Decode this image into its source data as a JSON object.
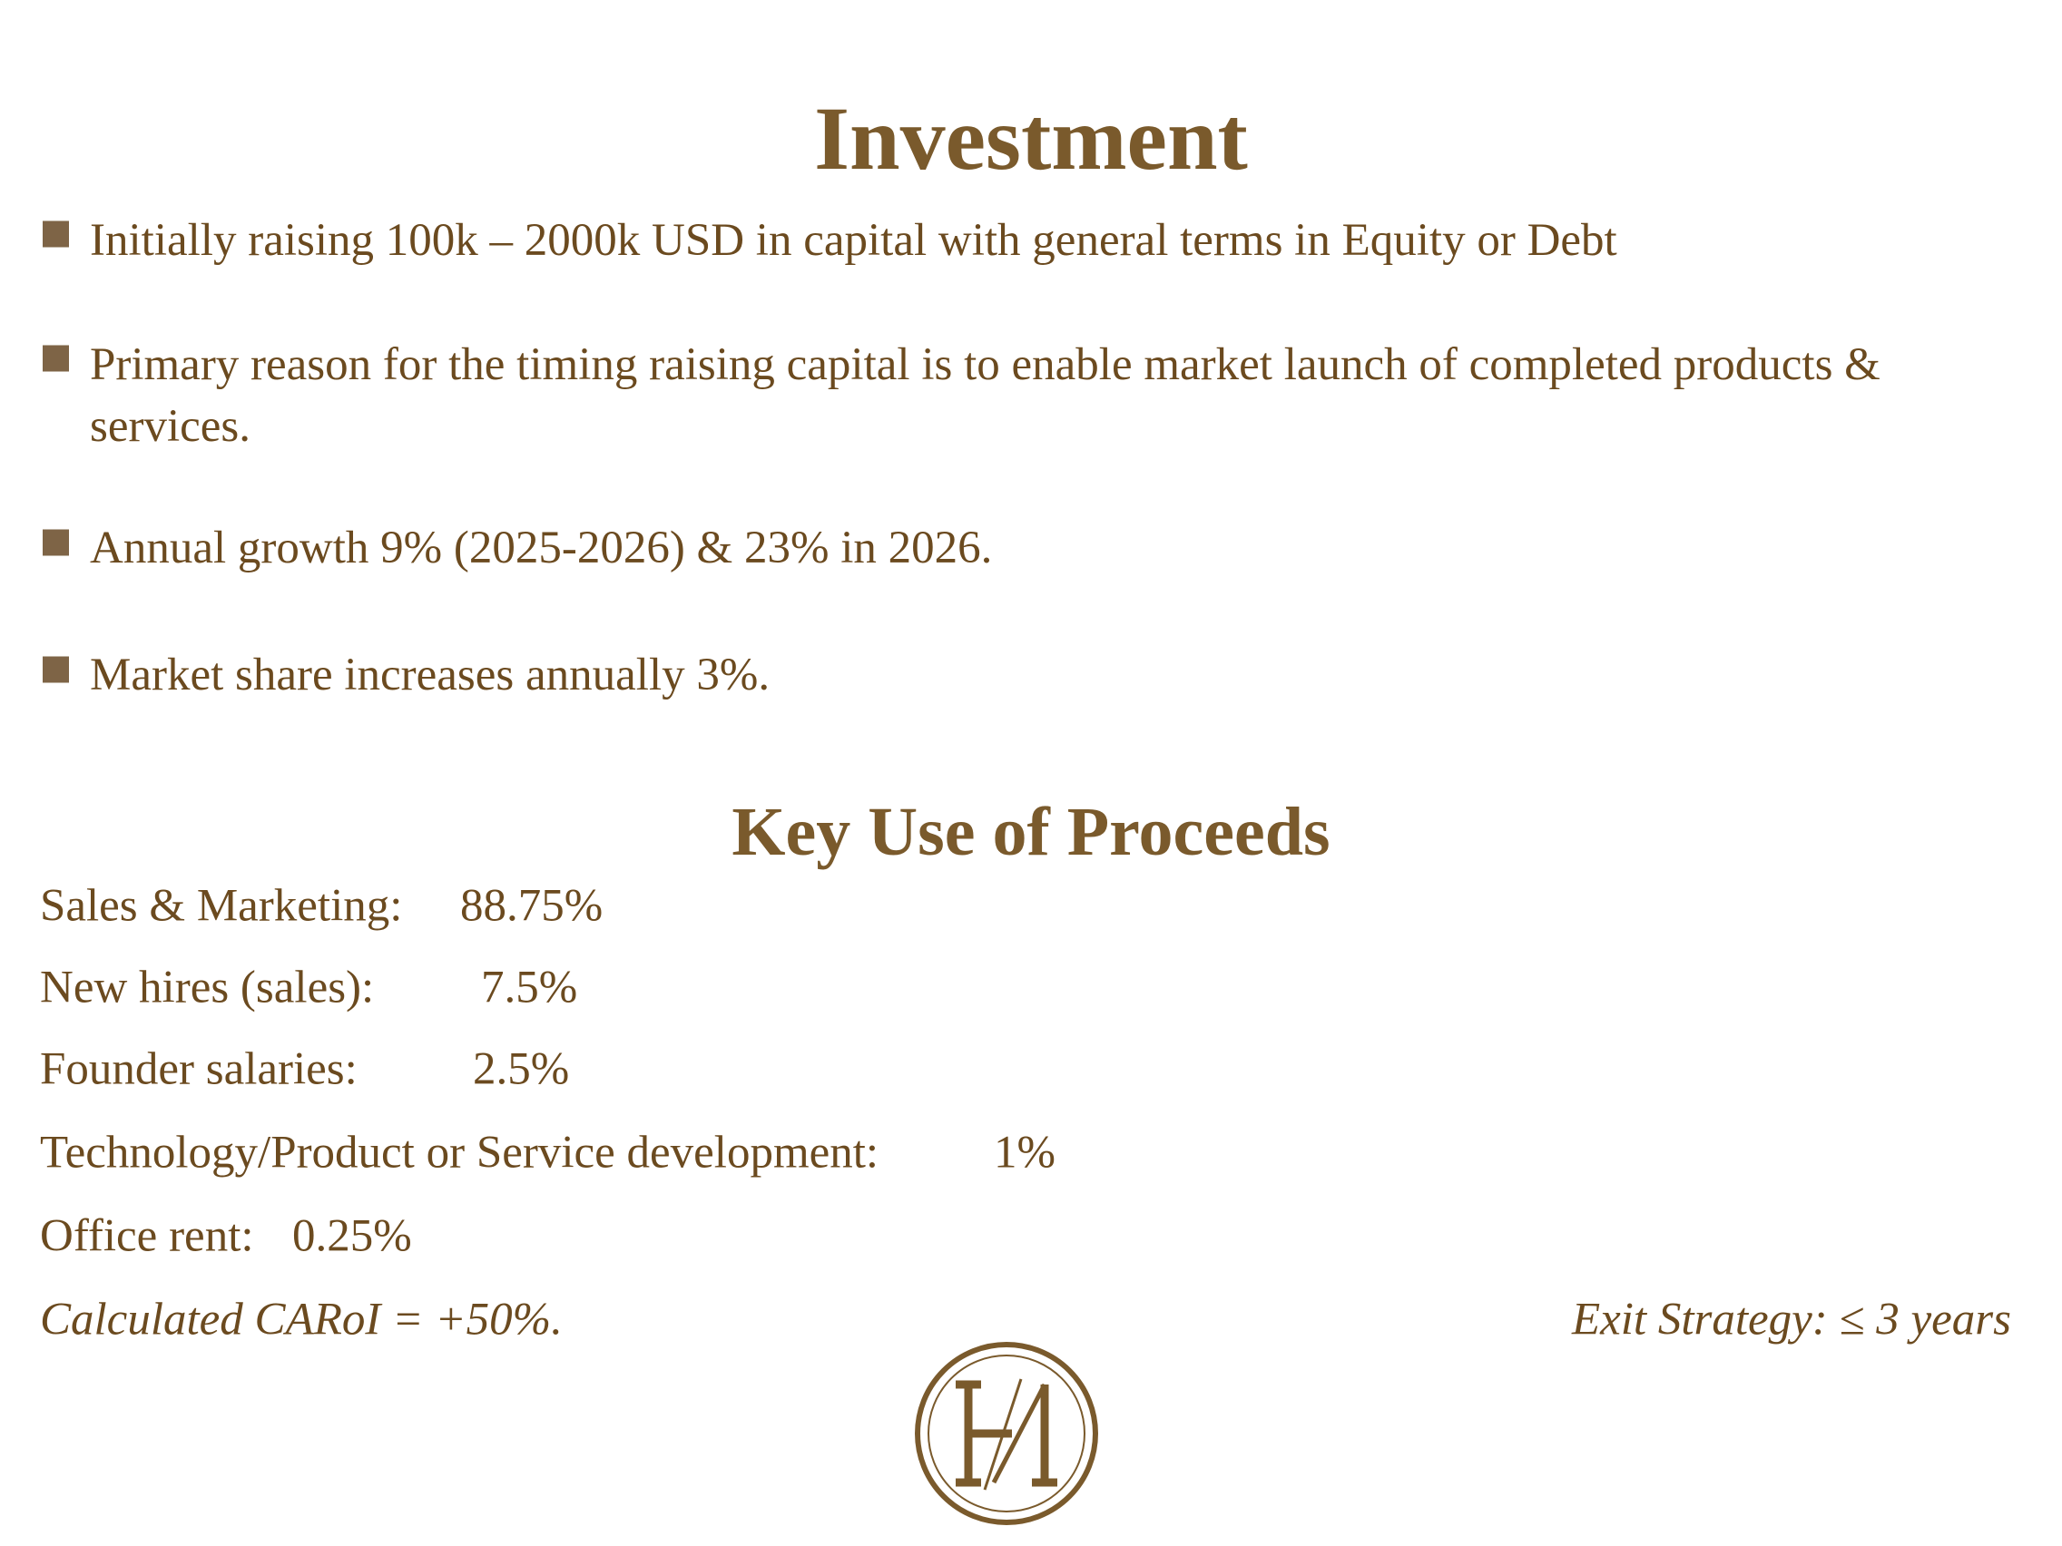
{
  "header": {
    "title": "Investment"
  },
  "bullets": [
    "Initially raising 100k – 2000k USD in capital with general terms in Equity or Debt",
    "Primary reason for the timing raising capital is to enable market launch of completed products & services.",
    "Annual growth 9% (2025-2026) & 23% in 2026.",
    "Market share increases annually 3%."
  ],
  "proceeds": {
    "title": "Key Use of Proceeds",
    "items": [
      {
        "label": "Sales & Marketing:",
        "value": "88.75%"
      },
      {
        "label": "New hires (sales):",
        "value": "7.5%"
      },
      {
        "label": "Founder salaries:",
        "value": "2.5%"
      },
      {
        "label": "Technology/Product or Service development:",
        "value": "1%"
      },
      {
        "label": "Office rent:",
        "value": "0.25%"
      }
    ]
  },
  "footer": {
    "left": "Calculated CARoI = +50%.",
    "right": "Exit Strategy: ≤ 3 years"
  }
}
